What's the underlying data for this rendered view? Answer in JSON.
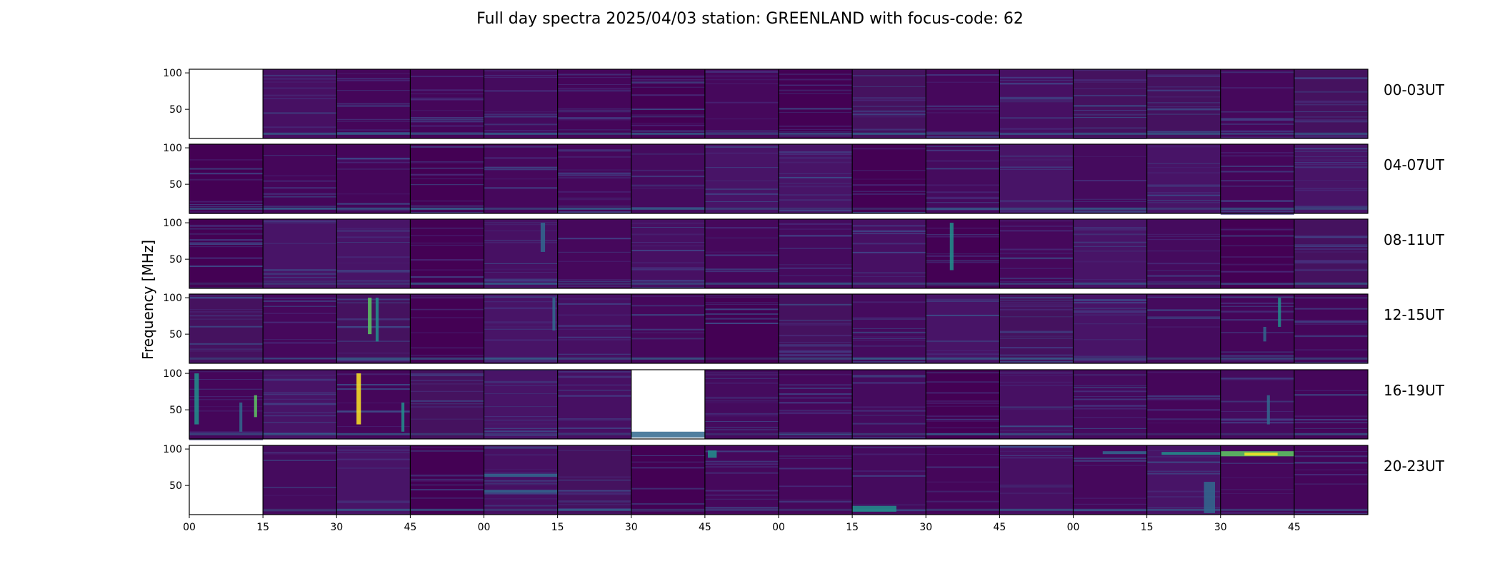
{
  "chart_data": {
    "type": "heatmap",
    "title": "Full day spectra 2025/04/03 station: GREENLAND with focus-code: 62",
    "ylabel": "Frequency [MHz]",
    "xlabel": "",
    "ylim": [
      10,
      105
    ],
    "yticks": [
      50,
      100
    ],
    "xticks": [
      "00",
      "15",
      "30",
      "45",
      "00",
      "15",
      "30",
      "45",
      "00",
      "15",
      "30",
      "45",
      "00",
      "15",
      "30",
      "45"
    ],
    "row_labels": [
      "00-03UT",
      "04-07UT",
      "08-11UT",
      "12-15UT",
      "16-19UT",
      "20-23UT"
    ],
    "panels_per_row": 16,
    "panel_minutes": 15,
    "missing_panels": [
      [
        0,
        0
      ],
      [
        4,
        6
      ],
      [
        5,
        0
      ]
    ],
    "colormap": "viridis",
    "colors": {
      "viridis_low": "#440154",
      "viridis_dark": "#472f7d",
      "viridis_mid": "#31688e",
      "viridis_teal": "#21918c",
      "viridis_green": "#5ec962",
      "viridis_high": "#fde725"
    }
  }
}
